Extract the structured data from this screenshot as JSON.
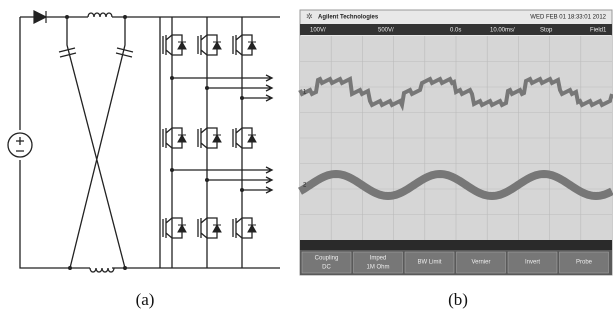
{
  "panels": [
    {
      "label": "(a)"
    },
    {
      "label": "(b)",
      "scope": {
        "brand": "Agilent Technologies",
        "timestamp": "WED FEB 01 18:33:01 2012",
        "settings": [
          "100V/",
          "500V/",
          "0.0s",
          "10.00ms/",
          "Stop",
          "Field1"
        ],
        "channels": [
          "1",
          "2"
        ],
        "buttons": [
          {
            "title": "Coupling",
            "value": "DC"
          },
          {
            "title": "Imped",
            "value": "1M Ohm"
          },
          {
            "title": "BW Limit",
            "value": ""
          },
          {
            "title": "Vernier",
            "value": ""
          },
          {
            "title": "Invert",
            "value": ""
          },
          {
            "title": "Probe",
            "value": ""
          }
        ]
      }
    }
  ]
}
